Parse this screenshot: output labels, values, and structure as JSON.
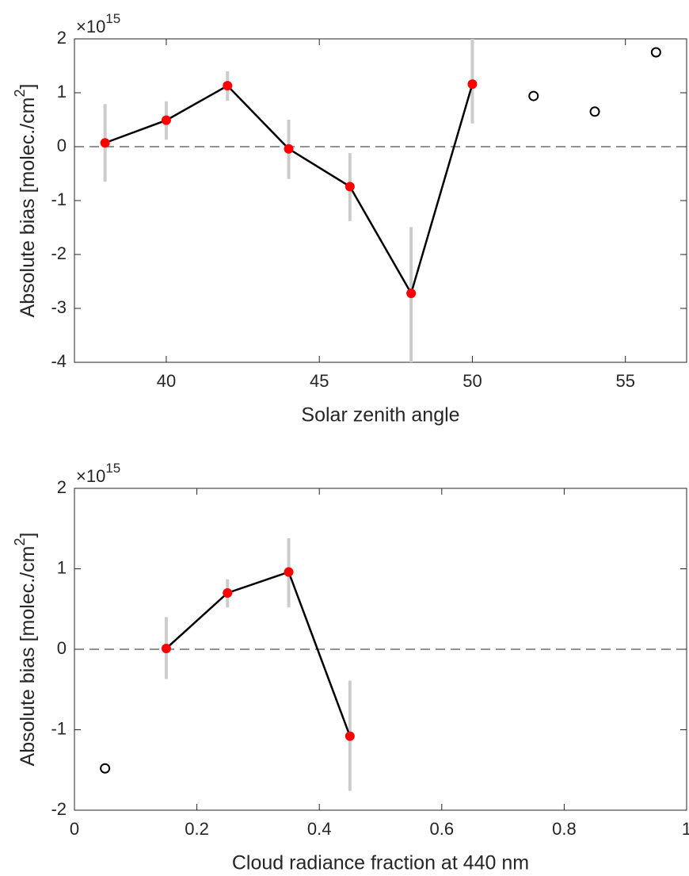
{
  "chart_data": [
    {
      "type": "line",
      "xlabel": "Solar zenith angle",
      "ylabel": "Absolute bias [molec./cm",
      "ylabel_sup": "2",
      "ylabel_end": "]",
      "y_multiplier": "×10",
      "y_exponent": "15",
      "xlim": [
        37,
        57
      ],
      "xticks": [
        40,
        45,
        50,
        55
      ],
      "ylim": [
        -4,
        2
      ],
      "yticks": [
        -4,
        -3,
        -2,
        -1,
        0,
        1,
        2
      ],
      "hline": 0,
      "points": {
        "color": "#ff0000",
        "line_color": "#000000",
        "bar_color": "#cccccc",
        "x": [
          38,
          40,
          42,
          44,
          46,
          48,
          50
        ],
        "values": [
          0.07,
          0.49,
          1.13,
          -0.04,
          -0.74,
          -2.72,
          1.16
        ],
        "lower": [
          -0.65,
          0.13,
          0.85,
          -0.6,
          -1.38,
          -4,
          0.43
        ],
        "upper": [
          0.79,
          0.84,
          1.4,
          0.5,
          -0.12,
          -1.49,
          2
        ]
      },
      "excluded": {
        "color": "#000000",
        "x": [
          52,
          54,
          56
        ],
        "values": [
          0.94,
          0.65,
          1.75
        ]
      }
    },
    {
      "type": "line",
      "xlabel": "Cloud radiance fraction at 440 nm",
      "ylabel": "Absolute bias [molec./cm",
      "ylabel_sup": "2",
      "ylabel_end": "]",
      "y_multiplier": "×10",
      "y_exponent": "15",
      "xlim": [
        0,
        1
      ],
      "xticks": [
        0,
        0.2,
        0.4,
        0.6,
        0.8,
        1
      ],
      "ylim": [
        -2,
        2
      ],
      "yticks": [
        -2,
        -1,
        0,
        1,
        2
      ],
      "hline": 0,
      "points": {
        "color": "#ff0000",
        "line_color": "#000000",
        "bar_color": "#cccccc",
        "x": [
          0.15,
          0.25,
          0.35,
          0.45
        ],
        "values": [
          0.01,
          0.7,
          0.96,
          -1.08
        ],
        "lower": [
          -0.37,
          0.52,
          0.52,
          -1.76
        ],
        "upper": [
          0.4,
          0.87,
          1.38,
          -0.39
        ]
      },
      "excluded": {
        "color": "#000000",
        "x": [
          0.05
        ],
        "values": [
          -1.48
        ]
      }
    }
  ]
}
